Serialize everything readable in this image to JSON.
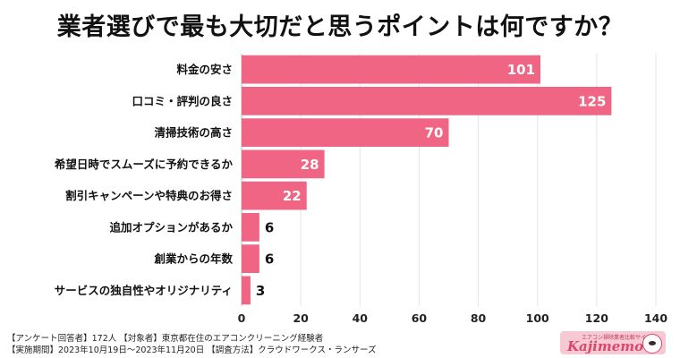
{
  "chart_data": {
    "type": "bar",
    "orientation": "horizontal",
    "title": "業者選びで最も大切だと思うポイントは何ですか？",
    "categories": [
      "料金の安さ",
      "口コミ・評判の良さ",
      "清掃技術の高さ",
      "希望日時でスムーズに予約できるか",
      "割引キャンペーンや特典のお得さ",
      "追加オプションがあるか",
      "創業からの年数",
      "サービスの独自性やオリジナリティ"
    ],
    "values": [
      101,
      125,
      70,
      28,
      22,
      6,
      6,
      3
    ],
    "xlim": [
      0,
      140
    ],
    "xticks": [
      0,
      20,
      40,
      60,
      80,
      100,
      120,
      140
    ],
    "grid": true,
    "bar_color": "#ef6583"
  },
  "footer": {
    "line1": "【アンケート回答者】172人 【対象者】東京都在住のエアコンクリーニング経験者",
    "line2": "【実施期間】2023年10月19日～2023年11月20日 【調査方法】クラウドワークス・ランサーズ"
  },
  "logo": {
    "tagline": "エアコン掃除業者比較サイト",
    "name": "Kajimemo",
    "icon": "sheep-mascot-icon"
  }
}
